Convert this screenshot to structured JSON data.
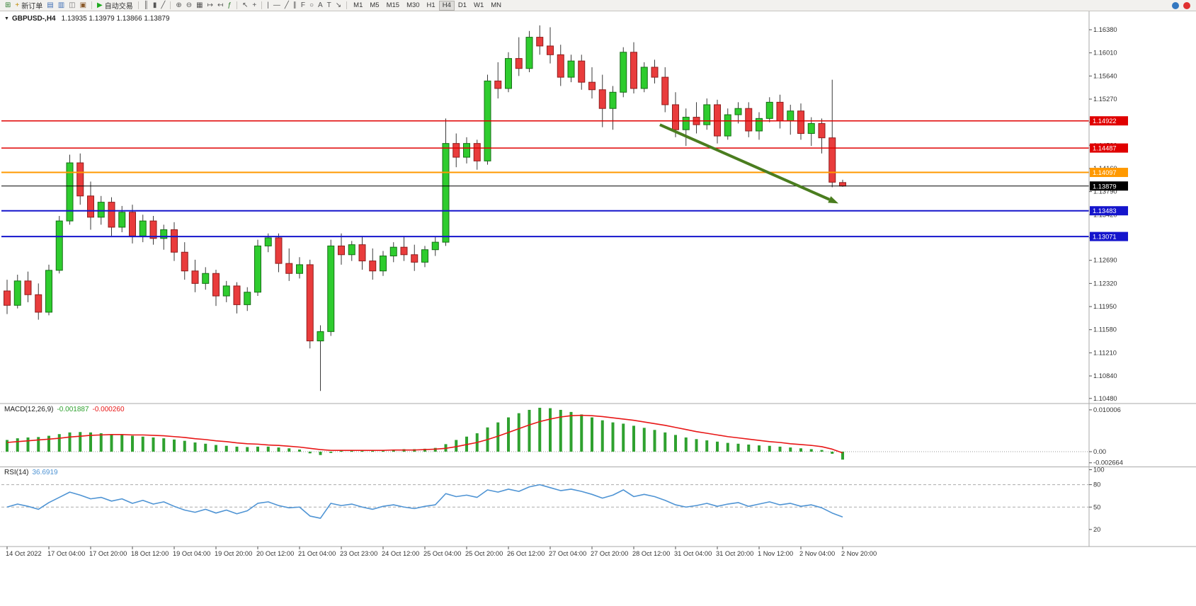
{
  "toolbar": {
    "new_order_label": "新订单",
    "autotrade_label": "自动交易",
    "timeframes": [
      "M1",
      "M5",
      "M15",
      "M30",
      "H1",
      "H4",
      "D1",
      "W1",
      "MN"
    ],
    "active_timeframe": "H4",
    "groups": [
      {
        "items": [
          {
            "name": "new-chart-icon",
            "glyph": "⊞",
            "color": "#2f7d2f"
          },
          {
            "name": "new-order-button",
            "glyph": "+",
            "color": "#c08a00",
            "label": "新订单"
          },
          {
            "name": "charts-list-icon",
            "glyph": "▤",
            "color": "#3f6fb5"
          },
          {
            "name": "market-watch-icon",
            "glyph": "▥",
            "color": "#3f6fb5"
          },
          {
            "name": "navigator-icon",
            "glyph": "◫",
            "color": "#777777"
          },
          {
            "name": "terminal-icon",
            "glyph": "▣",
            "color": "#8a5a2b"
          }
        ]
      },
      {
        "items": [
          {
            "name": "autotrade-button",
            "glyph": "▶",
            "color": "#1faa1f",
            "label": "自动交易"
          }
        ]
      },
      {
        "items": [
          {
            "name": "bar-chart-icon",
            "glyph": "║",
            "color": "#555555"
          },
          {
            "name": "candlestick-icon",
            "glyph": "▮",
            "color": "#555555"
          },
          {
            "name": "line-chart-icon",
            "glyph": "╱",
            "color": "#555555"
          }
        ]
      },
      {
        "items": [
          {
            "name": "zoom-in-icon",
            "glyph": "⊕",
            "color": "#555555"
          },
          {
            "name": "zoom-out-icon",
            "glyph": "⊖",
            "color": "#555555"
          },
          {
            "name": "tile-windows-icon",
            "glyph": "▦",
            "color": "#555555"
          },
          {
            "name": "auto-scroll-icon",
            "glyph": "↦",
            "color": "#555555"
          },
          {
            "name": "chart-shift-icon",
            "glyph": "↤",
            "color": "#555555"
          },
          {
            "name": "indicators-icon",
            "glyph": "ƒ",
            "color": "#2f7d2f"
          }
        ]
      },
      {
        "items": [
          {
            "name": "cursor-icon",
            "glyph": "↖",
            "color": "#555555"
          },
          {
            "name": "crosshair-icon",
            "glyph": "+",
            "color": "#555555"
          }
        ]
      },
      {
        "items": [
          {
            "name": "vertical-line-icon",
            "glyph": "|",
            "color": "#555555"
          },
          {
            "name": "horizontal-line-icon",
            "glyph": "—",
            "color": "#555555"
          },
          {
            "name": "trendline-icon",
            "glyph": "╱",
            "color": "#555555"
          },
          {
            "name": "channel-icon",
            "glyph": "∥",
            "color": "#555555"
          },
          {
            "name": "fibonacci-icon",
            "glyph": "F",
            "color": "#555555"
          },
          {
            "name": "shapes-icon",
            "glyph": "○",
            "color": "#555555"
          },
          {
            "name": "text-icon",
            "glyph": "A",
            "color": "#555555"
          },
          {
            "name": "label-icon",
            "glyph": "T",
            "color": "#555555"
          },
          {
            "name": "arrows-icon",
            "glyph": "↘",
            "color": "#555555"
          }
        ]
      }
    ],
    "right_icons": [
      {
        "name": "search-icon",
        "color": "#3478c0"
      },
      {
        "name": "notification-icon",
        "color": "#e03030"
      }
    ]
  },
  "chart": {
    "symbol_title": "GBPUSD-,H4",
    "ohlc_label": "1.13935 1.13979 1.13866 1.13879"
  },
  "chart_data": {
    "type": "candlestick",
    "symbol": "GBPUSD-",
    "timeframe": "H4",
    "current": {
      "open": 1.13935,
      "high": 1.13979,
      "low": 1.13866,
      "close": 1.13879
    },
    "colors": {
      "up": "#2ecc2e",
      "up_border": "#166e16",
      "down": "#e93c3c",
      "down_border": "#8f1d1d",
      "wick": "#3a3a3a"
    },
    "price_axis": {
      "ticks": [
        1.1638,
        1.1601,
        1.1564,
        1.1527,
        1.149,
        1.1453,
        1.1416,
        1.1379,
        1.1342,
        1.1305,
        1.1269,
        1.1232,
        1.1195,
        1.1158,
        1.1121,
        1.1084,
        1.1048
      ]
    },
    "time_labels": [
      "14 Oct 2022",
      "17 Oct 04:00",
      "17 Oct 20:00",
      "18 Oct 12:00",
      "19 Oct 04:00",
      "19 Oct 20:00",
      "20 Oct 12:00",
      "21 Oct 04:00",
      "23 Oct 23:00",
      "24 Oct 12:00",
      "25 Oct 04:00",
      "25 Oct 20:00",
      "26 Oct 12:00",
      "27 Oct 04:00",
      "27 Oct 20:00",
      "28 Oct 12:00",
      "31 Oct 04:00",
      "31 Oct 20:00",
      "1 Nov 12:00",
      "2 Nov 04:00",
      "2 Nov 20:00"
    ],
    "label_every_n_candles": 4,
    "candles": [
      [
        1.122,
        1.1238,
        1.1183,
        1.1197
      ],
      [
        1.1197,
        1.1246,
        1.1192,
        1.1236
      ],
      [
        1.1236,
        1.1251,
        1.1202,
        1.1214
      ],
      [
        1.1214,
        1.1232,
        1.1174,
        1.1186
      ],
      [
        1.1186,
        1.1262,
        1.1181,
        1.1253
      ],
      [
        1.1253,
        1.134,
        1.1248,
        1.1332
      ],
      [
        1.1332,
        1.1438,
        1.1326,
        1.1425
      ],
      [
        1.1425,
        1.144,
        1.1358,
        1.1372
      ],
      [
        1.1372,
        1.1395,
        1.1318,
        1.1338
      ],
      [
        1.1338,
        1.1372,
        1.1326,
        1.1362
      ],
      [
        1.1362,
        1.137,
        1.1308,
        1.1322
      ],
      [
        1.1322,
        1.1356,
        1.1314,
        1.1346
      ],
      [
        1.1346,
        1.1358,
        1.1296,
        1.1308
      ],
      [
        1.1308,
        1.1342,
        1.1298,
        1.1332
      ],
      [
        1.1332,
        1.134,
        1.1294,
        1.1304
      ],
      [
        1.1304,
        1.1326,
        1.1286,
        1.1318
      ],
      [
        1.1318,
        1.133,
        1.1268,
        1.1282
      ],
      [
        1.1282,
        1.1298,
        1.1238,
        1.1252
      ],
      [
        1.1252,
        1.127,
        1.1218,
        1.1232
      ],
      [
        1.1232,
        1.1258,
        1.1222,
        1.1248
      ],
      [
        1.1248,
        1.1254,
        1.1196,
        1.1212
      ],
      [
        1.1212,
        1.1236,
        1.1202,
        1.1228
      ],
      [
        1.1228,
        1.1234,
        1.1184,
        1.1198
      ],
      [
        1.1198,
        1.1226,
        1.1188,
        1.1218
      ],
      [
        1.1218,
        1.1302,
        1.1212,
        1.1292
      ],
      [
        1.1292,
        1.1312,
        1.1282,
        1.1305
      ],
      [
        1.1305,
        1.1312,
        1.125,
        1.1264
      ],
      [
        1.1264,
        1.1288,
        1.1236,
        1.1248
      ],
      [
        1.1248,
        1.1274,
        1.124,
        1.1262
      ],
      [
        1.1262,
        1.127,
        1.1128,
        1.114
      ],
      [
        1.114,
        1.1165,
        1.106,
        1.1155
      ],
      [
        1.1155,
        1.1302,
        1.1148,
        1.1292
      ],
      [
        1.1292,
        1.1312,
        1.1262,
        1.1278
      ],
      [
        1.1278,
        1.13,
        1.1268,
        1.1294
      ],
      [
        1.1294,
        1.1308,
        1.1254,
        1.1268
      ],
      [
        1.1268,
        1.1288,
        1.1238,
        1.1252
      ],
      [
        1.1252,
        1.1284,
        1.1244,
        1.1276
      ],
      [
        1.1276,
        1.1298,
        1.1266,
        1.129
      ],
      [
        1.129,
        1.1308,
        1.1268,
        1.1278
      ],
      [
        1.1278,
        1.1294,
        1.1252,
        1.1266
      ],
      [
        1.1266,
        1.1292,
        1.1258,
        1.1286
      ],
      [
        1.1286,
        1.1306,
        1.1276,
        1.1298
      ],
      [
        1.1298,
        1.1496,
        1.1292,
        1.1456
      ],
      [
        1.1456,
        1.1472,
        1.1418,
        1.1434
      ],
      [
        1.1434,
        1.1466,
        1.1424,
        1.1456
      ],
      [
        1.1456,
        1.1462,
        1.1414,
        1.1428
      ],
      [
        1.1428,
        1.1566,
        1.1422,
        1.1556
      ],
      [
        1.1556,
        1.1586,
        1.1528,
        1.1544
      ],
      [
        1.1544,
        1.1602,
        1.1538,
        1.1592
      ],
      [
        1.1592,
        1.1626,
        1.1564,
        1.1576
      ],
      [
        1.1576,
        1.1636,
        1.157,
        1.1626
      ],
      [
        1.1626,
        1.1645,
        1.1598,
        1.1612
      ],
      [
        1.1612,
        1.1642,
        1.1584,
        1.1598
      ],
      [
        1.1598,
        1.1614,
        1.1548,
        1.1562
      ],
      [
        1.1562,
        1.1598,
        1.1554,
        1.1588
      ],
      [
        1.1588,
        1.1598,
        1.1542,
        1.1554
      ],
      [
        1.1554,
        1.1578,
        1.1528,
        1.1542
      ],
      [
        1.1542,
        1.1566,
        1.1482,
        1.1512
      ],
      [
        1.1512,
        1.1548,
        1.1478,
        1.1538
      ],
      [
        1.1538,
        1.161,
        1.153,
        1.1602
      ],
      [
        1.1602,
        1.1618,
        1.1536,
        1.1544
      ],
      [
        1.1544,
        1.1586,
        1.1538,
        1.1578
      ],
      [
        1.1578,
        1.159,
        1.1552,
        1.1562
      ],
      [
        1.1562,
        1.1578,
        1.1506,
        1.1518
      ],
      [
        1.1518,
        1.1538,
        1.1466,
        1.1478
      ],
      [
        1.1478,
        1.1512,
        1.1452,
        1.1498
      ],
      [
        1.1498,
        1.1522,
        1.1472,
        1.1486
      ],
      [
        1.1486,
        1.1528,
        1.1478,
        1.1518
      ],
      [
        1.1518,
        1.1526,
        1.1456,
        1.1468
      ],
      [
        1.1468,
        1.1512,
        1.1462,
        1.1502
      ],
      [
        1.1502,
        1.1522,
        1.1488,
        1.1512
      ],
      [
        1.1512,
        1.1522,
        1.1466,
        1.1476
      ],
      [
        1.1476,
        1.1506,
        1.1462,
        1.1496
      ],
      [
        1.1496,
        1.153,
        1.149,
        1.1522
      ],
      [
        1.1522,
        1.1534,
        1.148,
        1.1492
      ],
      [
        1.1492,
        1.1518,
        1.147,
        1.1508
      ],
      [
        1.1508,
        1.152,
        1.1462,
        1.1472
      ],
      [
        1.1472,
        1.1498,
        1.1452,
        1.1488
      ],
      [
        1.1488,
        1.1496,
        1.144,
        1.1465
      ],
      [
        1.1465,
        1.1558,
        1.1386,
        1.1394
      ],
      [
        1.13935,
        1.13979,
        1.13866,
        1.13879
      ]
    ],
    "hlines": [
      {
        "name": "resistance-line-1",
        "price": 1.14922,
        "label": "1.14922",
        "color": "#e00000",
        "width": 1.5
      },
      {
        "name": "resistance-line-2",
        "price": 1.14487,
        "label": "1.14487",
        "color": "#e00000",
        "width": 1.5
      },
      {
        "name": "pivot-line",
        "price": 1.14097,
        "label": "1.14097",
        "color": "#ff9900",
        "width": 2
      },
      {
        "name": "support-line-1",
        "price": 1.13483,
        "label": "1.13483",
        "color": "#1515cc",
        "width": 2
      },
      {
        "name": "support-line-2",
        "price": 1.13071,
        "label": "1.13071",
        "color": "#1515cc",
        "width": 2
      }
    ],
    "current_price_line": {
      "price": 1.13879,
      "label": "1.13879",
      "color": "#000000"
    },
    "trend_arrow": {
      "from": {
        "index": 62.5,
        "price": 1.1486
      },
      "to": {
        "index": 79.6,
        "price": 1.136
      },
      "color": "#4a7d1f"
    },
    "indicators": {
      "macd": {
        "name": "MACD(12,26,9)",
        "value_main": "-0.001887",
        "value_signal": "-0.000260",
        "axis_values": [
          0.010006,
          0,
          -0.002664
        ],
        "axis_labels": [
          "0.010006",
          "0.00",
          "-0.002664"
        ],
        "histogram_color": "#2fa12f",
        "signal_color": "#e81717",
        "histogram": [
          0.0028,
          0.0032,
          0.0034,
          0.0035,
          0.0038,
          0.0042,
          0.0046,
          0.0047,
          0.0046,
          0.0044,
          0.0042,
          0.004,
          0.0038,
          0.0036,
          0.0034,
          0.0032,
          0.0029,
          0.0026,
          0.0022,
          0.0019,
          0.0016,
          0.0014,
          0.0012,
          0.0011,
          0.0012,
          0.0012,
          0.001,
          0.0008,
          0.0005,
          -0.0004,
          -0.0008,
          -0.0003,
          0.0002,
          0.0004,
          0.0004,
          0.0003,
          0.0004,
          0.0005,
          0.0006,
          0.0006,
          0.0007,
          0.0009,
          0.0018,
          0.0028,
          0.0036,
          0.0044,
          0.0058,
          0.007,
          0.0082,
          0.0092,
          0.01,
          0.0105,
          0.0104,
          0.01,
          0.0095,
          0.0089,
          0.0082,
          0.0075,
          0.007,
          0.0067,
          0.0062,
          0.0057,
          0.0052,
          0.0046,
          0.004,
          0.0034,
          0.003,
          0.0027,
          0.0024,
          0.0021,
          0.0019,
          0.0017,
          0.0015,
          0.0014,
          0.0012,
          0.001,
          0.0008,
          0.0006,
          0.0004,
          -0.0005,
          -0.0019
        ],
        "signal": [
          0.0022,
          0.0024,
          0.0026,
          0.0028,
          0.003,
          0.0032,
          0.0035,
          0.0037,
          0.0039,
          0.004,
          0.0041,
          0.0041,
          0.004,
          0.004,
          0.0039,
          0.0038,
          0.0036,
          0.0034,
          0.0031,
          0.0029,
          0.0026,
          0.0024,
          0.0021,
          0.0019,
          0.0018,
          0.0016,
          0.0015,
          0.0013,
          0.0011,
          0.0008,
          0.0005,
          0.0003,
          0.0003,
          0.0003,
          0.0003,
          0.0003,
          0.0003,
          0.0004,
          0.0004,
          0.0004,
          0.0005,
          0.0006,
          0.0008,
          0.0012,
          0.0017,
          0.0022,
          0.0029,
          0.0037,
          0.0046,
          0.0055,
          0.0064,
          0.0072,
          0.0078,
          0.0083,
          0.0086,
          0.0087,
          0.0086,
          0.0084,
          0.0081,
          0.0078,
          0.0075,
          0.0071,
          0.0067,
          0.0063,
          0.0058,
          0.0053,
          0.0048,
          0.0044,
          0.004,
          0.0036,
          0.0033,
          0.003,
          0.0027,
          0.0024,
          0.0022,
          0.0019,
          0.0017,
          0.0015,
          0.0012,
          0.0006,
          -0.0003
        ]
      },
      "rsi": {
        "name": "RSI(14)",
        "value": "36.6919",
        "axis_values": [
          100,
          80,
          50,
          20
        ],
        "axis_labels": [
          "100",
          "80",
          "50",
          "20"
        ],
        "levels": [
          80,
          50
        ],
        "line_color": "#4f94d4",
        "values": [
          50,
          54,
          51,
          47,
          56,
          63,
          70,
          66,
          61,
          63,
          58,
          61,
          55,
          59,
          54,
          57,
          51,
          46,
          43,
          47,
          42,
          46,
          41,
          45,
          55,
          57,
          52,
          49,
          50,
          38,
          35,
          55,
          52,
          54,
          50,
          47,
          51,
          53,
          50,
          48,
          51,
          53,
          68,
          64,
          66,
          63,
          73,
          70,
          74,
          71,
          77,
          80,
          76,
          72,
          74,
          71,
          67,
          62,
          66,
          73,
          64,
          67,
          64,
          59,
          53,
          50,
          52,
          55,
          51,
          54,
          56,
          51,
          54,
          57,
          53,
          55,
          51,
          53,
          49,
          42,
          36.69
        ]
      }
    }
  }
}
